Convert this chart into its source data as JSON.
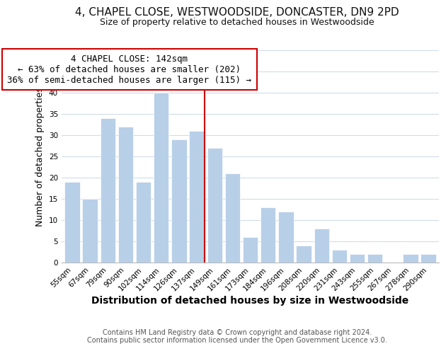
{
  "title": "4, CHAPEL CLOSE, WESTWOODSIDE, DONCASTER, DN9 2PD",
  "subtitle": "Size of property relative to detached houses in Westwoodside",
  "xlabel": "Distribution of detached houses by size in Westwoodside",
  "ylabel": "Number of detached properties",
  "bar_labels": [
    "55sqm",
    "67sqm",
    "79sqm",
    "90sqm",
    "102sqm",
    "114sqm",
    "126sqm",
    "137sqm",
    "149sqm",
    "161sqm",
    "173sqm",
    "184sqm",
    "196sqm",
    "208sqm",
    "220sqm",
    "231sqm",
    "243sqm",
    "255sqm",
    "267sqm",
    "278sqm",
    "290sqm"
  ],
  "bar_values": [
    19,
    15,
    34,
    32,
    19,
    40,
    29,
    31,
    27,
    21,
    6,
    13,
    12,
    4,
    8,
    3,
    2,
    2,
    0,
    2,
    2
  ],
  "bar_color": "#b8cfe8",
  "bar_edge_color": "#ffffff",
  "vline_color": "#cc0000",
  "vline_x_index": 7.425,
  "ylim": [
    0,
    50
  ],
  "yticks": [
    0,
    5,
    10,
    15,
    20,
    25,
    30,
    35,
    40,
    45,
    50
  ],
  "annotation_title": "4 CHAPEL CLOSE: 142sqm",
  "annotation_line1": "← 63% of detached houses are smaller (202)",
  "annotation_line2": "36% of semi-detached houses are larger (115) →",
  "annotation_box_color": "#ffffff",
  "annotation_box_edge": "#cc0000",
  "footnote1": "Contains HM Land Registry data © Crown copyright and database right 2024.",
  "footnote2": "Contains public sector information licensed under the Open Government Licence v3.0.",
  "background_color": "#ffffff",
  "grid_color": "#d0dce8",
  "title_fontsize": 11,
  "subtitle_fontsize": 9,
  "xlabel_fontsize": 10,
  "ylabel_fontsize": 9,
  "annotation_fontsize": 9,
  "tick_fontsize": 7.5,
  "footnote_fontsize": 7
}
